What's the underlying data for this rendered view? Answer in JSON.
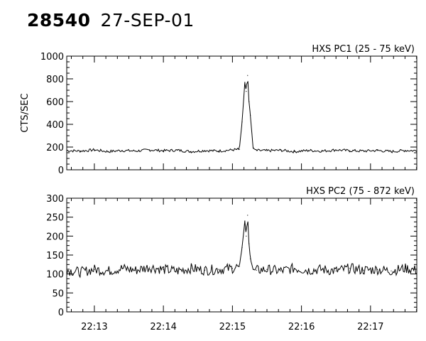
{
  "header": {
    "id": "28540",
    "date": "27-SEP-01"
  },
  "chart_data": [
    {
      "type": "line",
      "title": "HXS PC1 (25 - 75 keV)",
      "ylabel": "CTS/SEC",
      "xlabel": "",
      "ylim": [
        0,
        1000
      ],
      "yticks": [
        0,
        200,
        400,
        600,
        800,
        1000
      ],
      "xlim": [
        "22:12.6",
        "22:17.67"
      ],
      "xtick_labels": [
        "22:13",
        "22:14",
        "22:15",
        "22:16",
        "22:17"
      ],
      "x_minutes": [
        12.6,
        12.8,
        13.0,
        13.2,
        13.4,
        13.6,
        13.8,
        14.0,
        14.2,
        14.4,
        14.6,
        14.8,
        15.0,
        15.1,
        15.14,
        15.18,
        15.2,
        15.22,
        15.24,
        15.26,
        15.3,
        15.35,
        15.5,
        15.7,
        15.9,
        16.1,
        16.3,
        16.5,
        16.7,
        16.9,
        17.1,
        17.3,
        17.5,
        17.67
      ],
      "values": [
        170,
        165,
        175,
        160,
        170,
        165,
        175,
        168,
        172,
        160,
        170,
        165,
        175,
        180,
        420,
        770,
        690,
        830,
        600,
        480,
        190,
        170,
        168,
        172,
        160,
        170,
        165,
        175,
        168,
        165,
        170,
        160,
        170,
        168
      ],
      "grid": false,
      "legend": "none"
    },
    {
      "type": "line",
      "title": "HXS PC2 (75 - 872 keV)",
      "ylabel": "",
      "xlabel": "",
      "ylim": [
        0,
        300
      ],
      "yticks": [
        0,
        50,
        100,
        150,
        200,
        250,
        300
      ],
      "xlim": [
        "22:12.6",
        "22:17.67"
      ],
      "xtick_labels": [
        "22:13",
        "22:14",
        "22:15",
        "22:16",
        "22:17"
      ],
      "x_minutes": [
        12.6,
        12.8,
        13.0,
        13.2,
        13.4,
        13.6,
        13.8,
        14.0,
        14.2,
        14.4,
        14.6,
        14.8,
        15.0,
        15.1,
        15.14,
        15.18,
        15.2,
        15.22,
        15.24,
        15.26,
        15.3,
        15.35,
        15.5,
        15.7,
        15.9,
        16.1,
        16.3,
        16.5,
        16.7,
        16.9,
        17.1,
        17.3,
        17.5,
        17.67
      ],
      "values": [
        110,
        105,
        112,
        108,
        115,
        110,
        118,
        112,
        108,
        115,
        110,
        112,
        115,
        120,
        170,
        240,
        200,
        255,
        180,
        140,
        112,
        110,
        112,
        108,
        115,
        110,
        112,
        108,
        115,
        110,
        112,
        108,
        115,
        110
      ],
      "grid": false,
      "legend": "none"
    }
  ]
}
